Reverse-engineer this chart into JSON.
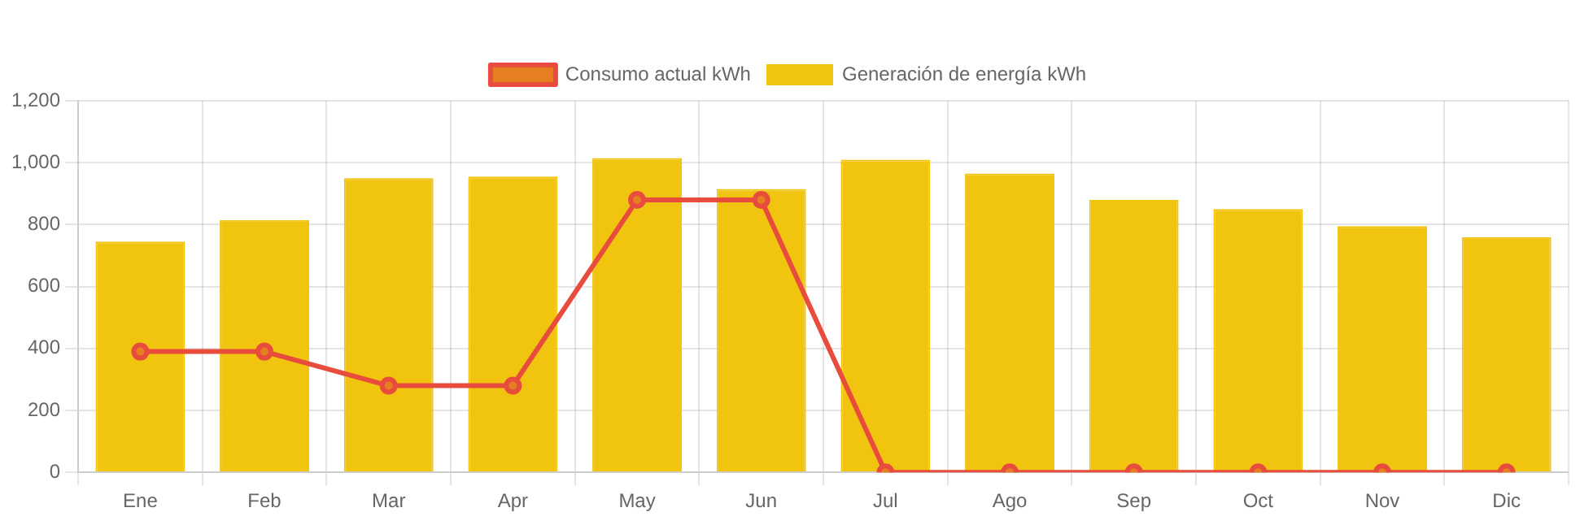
{
  "chart_data": {
    "type": "bar",
    "categories": [
      "Ene",
      "Feb",
      "Mar",
      "Apr",
      "May",
      "Jun",
      "Jul",
      "Ago",
      "Sep",
      "Oct",
      "Nov",
      "Dic"
    ],
    "series": [
      {
        "name": "Consumo actual kWh",
        "type": "line",
        "color": "#e74c3c",
        "values": [
          390,
          390,
          280,
          280,
          880,
          880,
          0,
          0,
          0,
          0,
          0,
          0
        ]
      },
      {
        "name": "Generación de energía kWh",
        "color": "#f1c40f",
        "values": [
          745,
          815,
          950,
          955,
          1015,
          915,
          1010,
          965,
          880,
          850,
          795,
          760
        ]
      }
    ],
    "ylim": [
      0,
      1200
    ],
    "yticks": [
      0,
      200,
      400,
      600,
      800,
      {
        "value": 1000,
        "label": "1,000"
      },
      {
        "value": 1200,
        "label": "1,200"
      }
    ],
    "grid": true,
    "legend": "top",
    "marker": "circle"
  }
}
